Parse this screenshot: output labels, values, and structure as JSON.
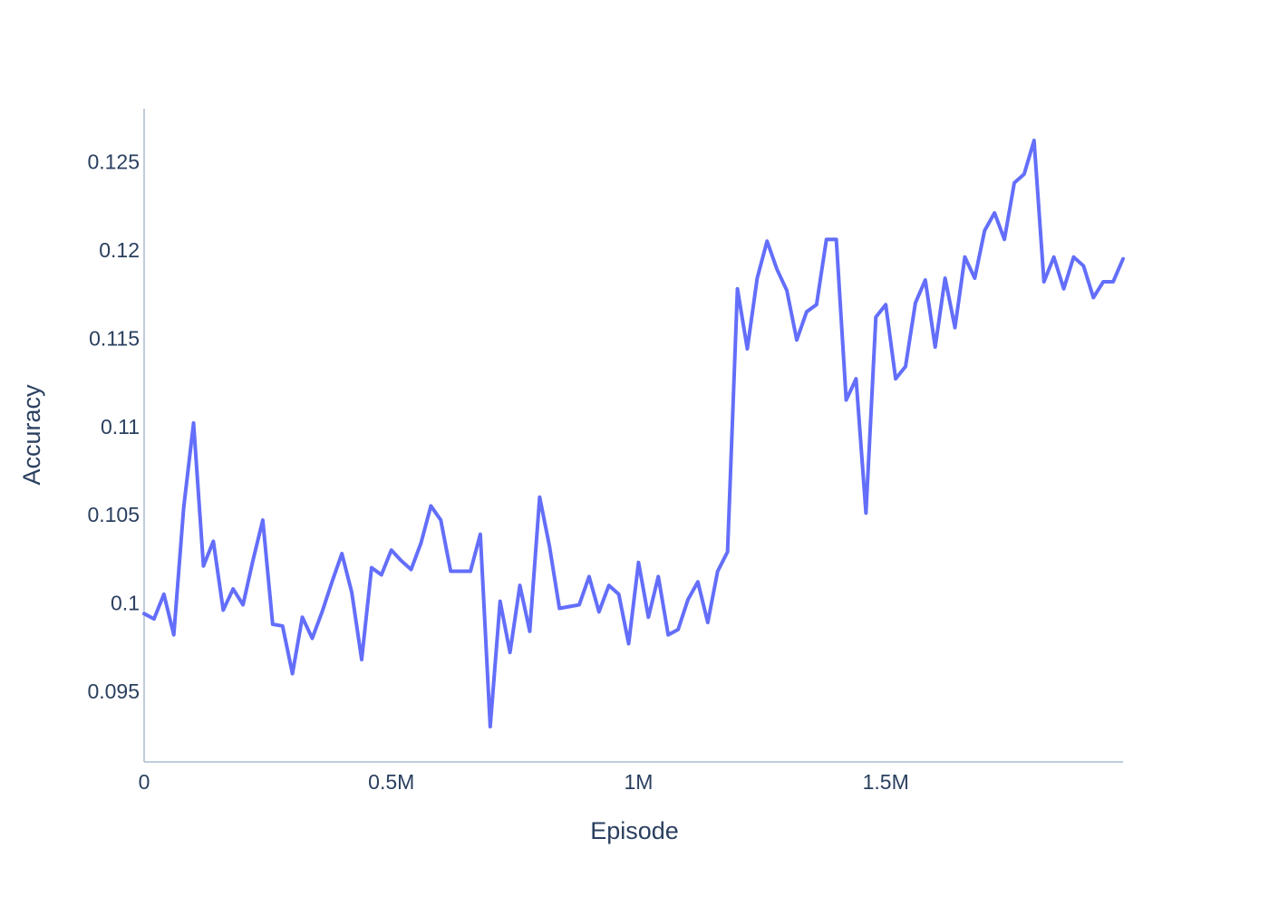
{
  "chart_data": {
    "type": "line",
    "title": "",
    "xlabel": "Episode",
    "ylabel": "Accuracy",
    "xlim": [
      0,
      1980000
    ],
    "ylim": [
      0.091,
      0.128
    ],
    "grid": false,
    "legend": "none",
    "x_ticks": [
      {
        "value": 0,
        "label": "0"
      },
      {
        "value": 500000,
        "label": "0.5M"
      },
      {
        "value": 1000000,
        "label": "1M"
      },
      {
        "value": 1500000,
        "label": "1.5M"
      }
    ],
    "y_ticks": [
      {
        "value": 0.095,
        "label": "0.095"
      },
      {
        "value": 0.1,
        "label": "0.1"
      },
      {
        "value": 0.105,
        "label": "0.105"
      },
      {
        "value": 0.11,
        "label": "0.11"
      },
      {
        "value": 0.115,
        "label": "0.115"
      },
      {
        "value": 0.12,
        "label": "0.12"
      },
      {
        "value": 0.125,
        "label": "0.125"
      }
    ],
    "series": [
      {
        "color": "#636efa",
        "x": [
          0,
          20000,
          40000,
          60000,
          80000,
          100000,
          120000,
          140000,
          160000,
          180000,
          200000,
          220000,
          240000,
          260000,
          280000,
          300000,
          320000,
          340000,
          360000,
          380000,
          400000,
          420000,
          440000,
          460000,
          480000,
          500000,
          520000,
          540000,
          560000,
          580000,
          600000,
          620000,
          640000,
          660000,
          680000,
          700000,
          720000,
          740000,
          760000,
          780000,
          800000,
          820000,
          840000,
          860000,
          880000,
          900000,
          920000,
          940000,
          960000,
          980000,
          1000000,
          1020000,
          1040000,
          1060000,
          1080000,
          1100000,
          1120000,
          1140000,
          1160000,
          1180000,
          1200000,
          1220000,
          1240000,
          1260000,
          1280000,
          1300000,
          1320000,
          1340000,
          1360000,
          1380000,
          1400000,
          1420000,
          1440000,
          1460000,
          1480000,
          1500000,
          1520000,
          1540000,
          1560000,
          1580000,
          1600000,
          1620000,
          1640000,
          1660000,
          1680000,
          1700000,
          1720000,
          1740000,
          1760000,
          1780000,
          1800000,
          1820000,
          1840000,
          1860000,
          1880000,
          1900000,
          1920000,
          1940000,
          1960000,
          1980000
        ],
        "y": [
          0.0994,
          0.0991,
          0.1005,
          0.0982,
          0.1054,
          0.1102,
          0.1021,
          0.1035,
          0.0996,
          0.1008,
          0.0999,
          0.1024,
          0.1047,
          0.0988,
          0.0987,
          0.096,
          0.0992,
          0.098,
          0.0995,
          0.1012,
          0.1028,
          0.1006,
          0.0968,
          0.102,
          0.1016,
          0.103,
          0.1024,
          0.1019,
          0.1034,
          0.1055,
          0.1047,
          0.1018,
          0.1018,
          0.1018,
          0.1039,
          0.093,
          0.1001,
          0.0972,
          0.101,
          0.0984,
          0.106,
          0.1032,
          0.0997,
          0.0998,
          0.0999,
          0.1015,
          0.0995,
          0.101,
          0.1005,
          0.0977,
          0.1023,
          0.0992,
          0.1015,
          0.0982,
          0.0985,
          0.1002,
          0.1012,
          0.0989,
          0.1018,
          0.1029,
          0.1178,
          0.1144,
          0.1184,
          0.1205,
          0.1189,
          0.1177,
          0.1149,
          0.1165,
          0.1169,
          0.1206,
          0.1206,
          0.1115,
          0.1127,
          0.1051,
          0.1162,
          0.1169,
          0.1127,
          0.1134,
          0.117,
          0.1183,
          0.1145,
          0.1184,
          0.1156,
          0.1196,
          0.1184,
          0.1211,
          0.1221,
          0.1206,
          0.1238,
          0.1243,
          0.1262,
          0.1182,
          0.1196,
          0.1178,
          0.1196,
          0.1191,
          0.1173,
          0.1182,
          0.1182,
          0.1195
        ]
      }
    ]
  }
}
